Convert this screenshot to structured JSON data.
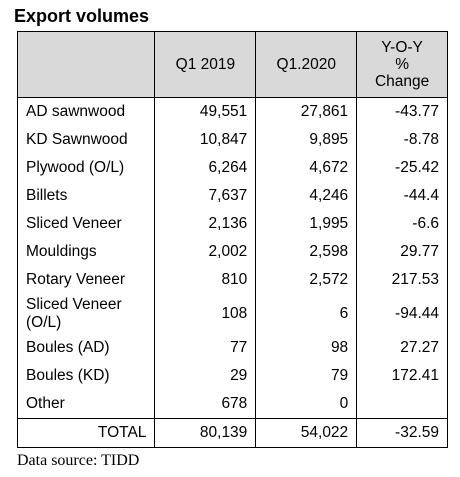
{
  "title": "Export volumes",
  "table": {
    "headers": {
      "product": "",
      "q1_2019": "Q1 2019",
      "q1_2020": "Q1.2020",
      "yoy_line1": "Y-O-Y",
      "yoy_line2": "%",
      "yoy_line3": "Change"
    },
    "rows": [
      {
        "product": "AD sawnwood",
        "q1_2019": "49,551",
        "q1_2020": "27,861",
        "yoy": "-43.77"
      },
      {
        "product": "KD Sawnwood",
        "q1_2019": "10,847",
        "q1_2020": "9,895",
        "yoy": "-8.78"
      },
      {
        "product": "Plywood (O/L)",
        "q1_2019": "6,264",
        "q1_2020": "4,672",
        "yoy": "-25.42"
      },
      {
        "product": "Billets",
        "q1_2019": "7,637",
        "q1_2020": "4,246",
        "yoy": "-44.4"
      },
      {
        "product": "Sliced Veneer",
        "q1_2019": "2,136",
        "q1_2020": "1,995",
        "yoy": "-6.6"
      },
      {
        "product": "Mouldings",
        "q1_2019": "2,002",
        "q1_2020": "2,598",
        "yoy": "29.77"
      },
      {
        "product": "Rotary Veneer",
        "q1_2019": "810",
        "q1_2020": "2,572",
        "yoy": "217.53"
      },
      {
        "product_line1": "Sliced Veneer",
        "product_line2": "(O/L)",
        "q1_2019": "108",
        "q1_2020": "6",
        "yoy": "-94.44"
      },
      {
        "product": "Boules (AD)",
        "q1_2019": "77",
        "q1_2020": "98",
        "yoy": "27.27"
      },
      {
        "product": "Boules (KD)",
        "q1_2019": "29",
        "q1_2020": "79",
        "yoy": "172.41"
      },
      {
        "product": "Other",
        "q1_2019": "678",
        "q1_2020": "0",
        "yoy": ""
      }
    ],
    "total": {
      "product": "TOTAL",
      "q1_2019": "80,139",
      "q1_2020": "54,022",
      "yoy": "-32.59"
    }
  },
  "source": "Data source: TIDD"
}
